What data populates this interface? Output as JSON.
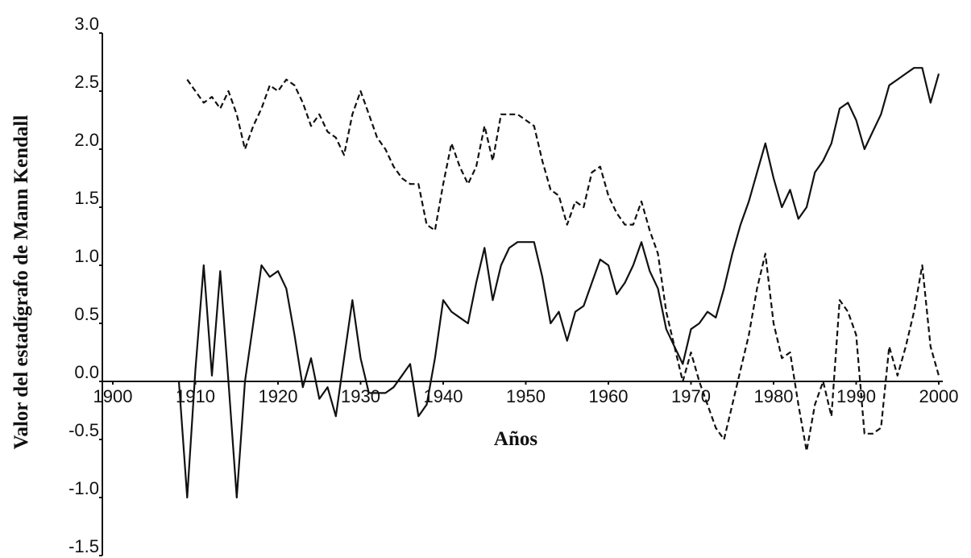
{
  "chart_data": {
    "type": "line",
    "xlabel": "Años",
    "ylabel": "Valor del estadígrafo de Mann Kendall",
    "xlim": [
      1900,
      2000
    ],
    "xticks": [
      1900,
      1910,
      1920,
      1930,
      1940,
      1950,
      1960,
      1970,
      1980,
      1990,
      2000
    ],
    "ylim": [
      -1.5,
      3.0
    ],
    "yticks": [
      {
        "value": 3.0,
        "label": "3.0"
      },
      2.5,
      {
        "value": 2.0,
        "label": "2.0"
      },
      1.5,
      {
        "value": 1.0,
        "label": "1.0"
      },
      0.5,
      {
        "value": 0,
        "label": "0.0"
      },
      -0.5,
      {
        "value": -1.0,
        "label": "-1.0"
      },
      -1.5
    ],
    "grid": false,
    "x": [
      1908,
      1909,
      1910,
      1911,
      1912,
      1913,
      1914,
      1915,
      1916,
      1917,
      1918,
      1919,
      1920,
      1921,
      1922,
      1923,
      1924,
      1925,
      1926,
      1927,
      1928,
      1929,
      1930,
      1931,
      1932,
      1933,
      1934,
      1935,
      1936,
      1937,
      1938,
      1939,
      1940,
      1941,
      1942,
      1943,
      1944,
      1945,
      1946,
      1947,
      1948,
      1949,
      1950,
      1951,
      1952,
      1953,
      1954,
      1955,
      1956,
      1957,
      1958,
      1959,
      1960,
      1961,
      1962,
      1963,
      1964,
      1965,
      1966,
      1967,
      1968,
      1969,
      1970,
      1971,
      1972,
      1973,
      1974,
      1975,
      1976,
      1977,
      1978,
      1979,
      1980,
      1981,
      1982,
      1983,
      1984,
      1985,
      1986,
      1987,
      1988,
      1989,
      1990,
      1991,
      1992,
      1993,
      1994,
      1995,
      1996,
      1997,
      1998,
      1999,
      2000
    ],
    "series": [
      {
        "color": "#111111",
        "style": "solid",
        "values": [
          0.0,
          -1.0,
          0.1,
          1.0,
          0.05,
          0.95,
          0.0,
          -1.0,
          0.0,
          0.5,
          1.0,
          0.9,
          0.95,
          0.8,
          0.4,
          -0.05,
          0.2,
          -0.15,
          -0.05,
          -0.3,
          0.2,
          0.7,
          0.2,
          -0.1,
          -0.1,
          -0.1,
          -0.05,
          0.05,
          0.15,
          -0.3,
          -0.2,
          0.2,
          0.7,
          0.6,
          0.55,
          0.5,
          0.85,
          1.15,
          0.7,
          1.0,
          1.15,
          1.2,
          1.2,
          1.2,
          0.9,
          0.5,
          0.6,
          0.35,
          0.6,
          0.65,
          0.85,
          1.05,
          1.0,
          0.75,
          0.85,
          1.0,
          1.2,
          0.95,
          0.8,
          0.45,
          0.3,
          0.15,
          0.45,
          0.5,
          0.6,
          0.55,
          0.8,
          1.1,
          1.35,
          1.55,
          1.8,
          2.05,
          1.75,
          1.5,
          1.65,
          1.4,
          1.5,
          1.8,
          1.9,
          2.05,
          2.35,
          2.4,
          2.25,
          2.0,
          2.15,
          2.3,
          2.55,
          2.6,
          2.65,
          2.7,
          2.7,
          2.4,
          2.65
        ]
      },
      {
        "color": "#111111",
        "style": "dashed",
        "values": [
          null,
          2.6,
          2.5,
          2.4,
          2.45,
          2.35,
          2.5,
          2.3,
          2.0,
          2.2,
          2.35,
          2.55,
          2.5,
          2.6,
          2.55,
          2.4,
          2.2,
          2.3,
          2.15,
          2.1,
          1.95,
          2.3,
          2.5,
          2.3,
          2.1,
          2.0,
          1.85,
          1.75,
          1.7,
          1.7,
          1.35,
          1.3,
          1.7,
          2.05,
          1.85,
          1.7,
          1.85,
          2.2,
          1.9,
          2.3,
          2.3,
          2.3,
          2.25,
          2.2,
          1.9,
          1.65,
          1.6,
          1.35,
          1.55,
          1.5,
          1.8,
          1.85,
          1.6,
          1.45,
          1.35,
          1.35,
          1.55,
          1.3,
          1.1,
          0.6,
          0.3,
          0.0,
          0.25,
          0.0,
          -0.2,
          -0.4,
          -0.5,
          -0.2,
          0.1,
          0.4,
          0.8,
          1.1,
          0.5,
          0.2,
          0.25,
          -0.2,
          -0.6,
          -0.2,
          0.0,
          -0.3,
          0.7,
          0.6,
          0.4,
          -0.45,
          -0.45,
          -0.4,
          0.3,
          0.05,
          0.3,
          0.6,
          1.0,
          0.3,
          0.05
        ]
      }
    ]
  }
}
